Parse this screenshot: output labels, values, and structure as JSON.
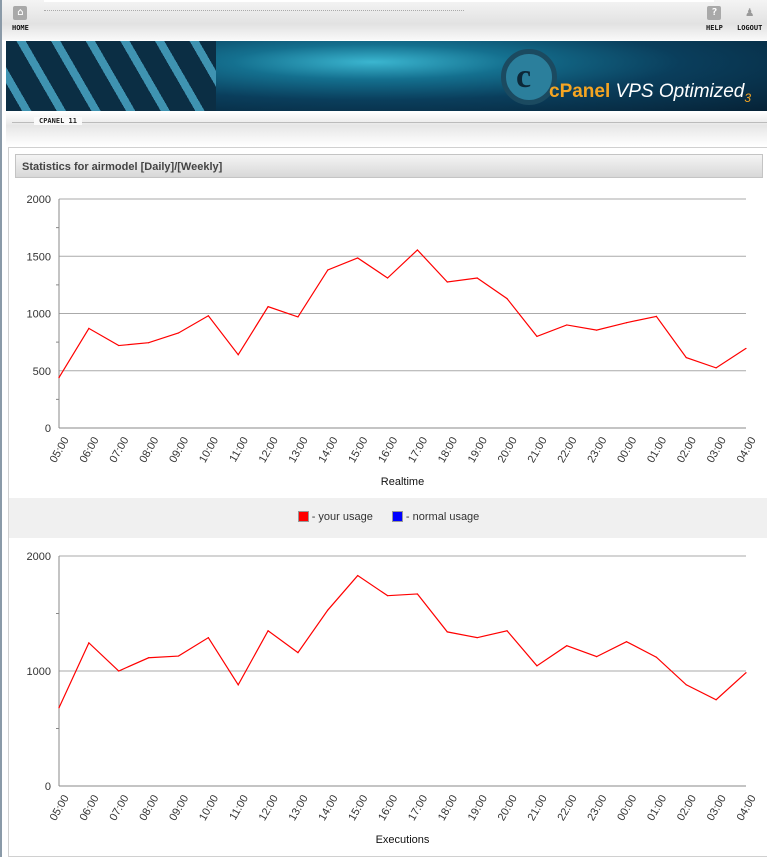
{
  "nav": {
    "home": "HOME",
    "help": "HELP",
    "logout": "LOGOUT"
  },
  "banner": {
    "brand_cpanel": "cPanel",
    "brand_rest": "VPS Optimized",
    "brand_ver": "3"
  },
  "subbar": {
    "label": "CPANEL 11"
  },
  "panel": {
    "title": "Statistics for airmodel [Daily]/[Weekly]"
  },
  "legend": {
    "items": [
      {
        "label": "- your usage",
        "color": "#ff0000"
      },
      {
        "label": "- normal usage",
        "color": "#0000ff"
      }
    ]
  },
  "chart_data": [
    {
      "type": "line",
      "xlabel": "Realtime",
      "ylim": [
        0,
        2000
      ],
      "yticks": [
        0,
        500,
        1000,
        1500,
        2000
      ],
      "grid": true,
      "categories": [
        "05:00",
        "06:00",
        "07:00",
        "08:00",
        "09:00",
        "10:00",
        "11:00",
        "12:00",
        "13:00",
        "14:00",
        "15:00",
        "16:00",
        "17:00",
        "18:00",
        "19:00",
        "20:00",
        "21:00",
        "22:00",
        "23:00",
        "00:00",
        "01:00",
        "02:00",
        "03:00",
        "04:00"
      ],
      "series": [
        {
          "color": "#ff0000",
          "values": [
            440,
            870,
            720,
            745,
            830,
            980,
            640,
            1060,
            970,
            1380,
            1485,
            1310,
            1555,
            1275,
            1310,
            1130,
            800,
            900,
            855,
            920,
            975,
            615,
            525,
            695
          ]
        }
      ]
    },
    {
      "type": "line",
      "xlabel": "Executions",
      "ylim": [
        0,
        2000
      ],
      "yticks": [
        0,
        1000,
        2000
      ],
      "grid": true,
      "categories": [
        "05:00",
        "06:00",
        "07:00",
        "08:00",
        "09:00",
        "10:00",
        "11:00",
        "12:00",
        "13:00",
        "14:00",
        "15:00",
        "16:00",
        "17:00",
        "18:00",
        "19:00",
        "20:00",
        "21:00",
        "22:00",
        "23:00",
        "00:00",
        "01:00",
        "02:00",
        "03:00",
        "04:00"
      ],
      "series": [
        {
          "color": "#ff0000",
          "values": [
            680,
            1245,
            1000,
            1115,
            1130,
            1290,
            880,
            1350,
            1160,
            1530,
            1830,
            1655,
            1670,
            1340,
            1290,
            1350,
            1045,
            1220,
            1125,
            1255,
            1120,
            880,
            750,
            985
          ]
        }
      ]
    }
  ]
}
